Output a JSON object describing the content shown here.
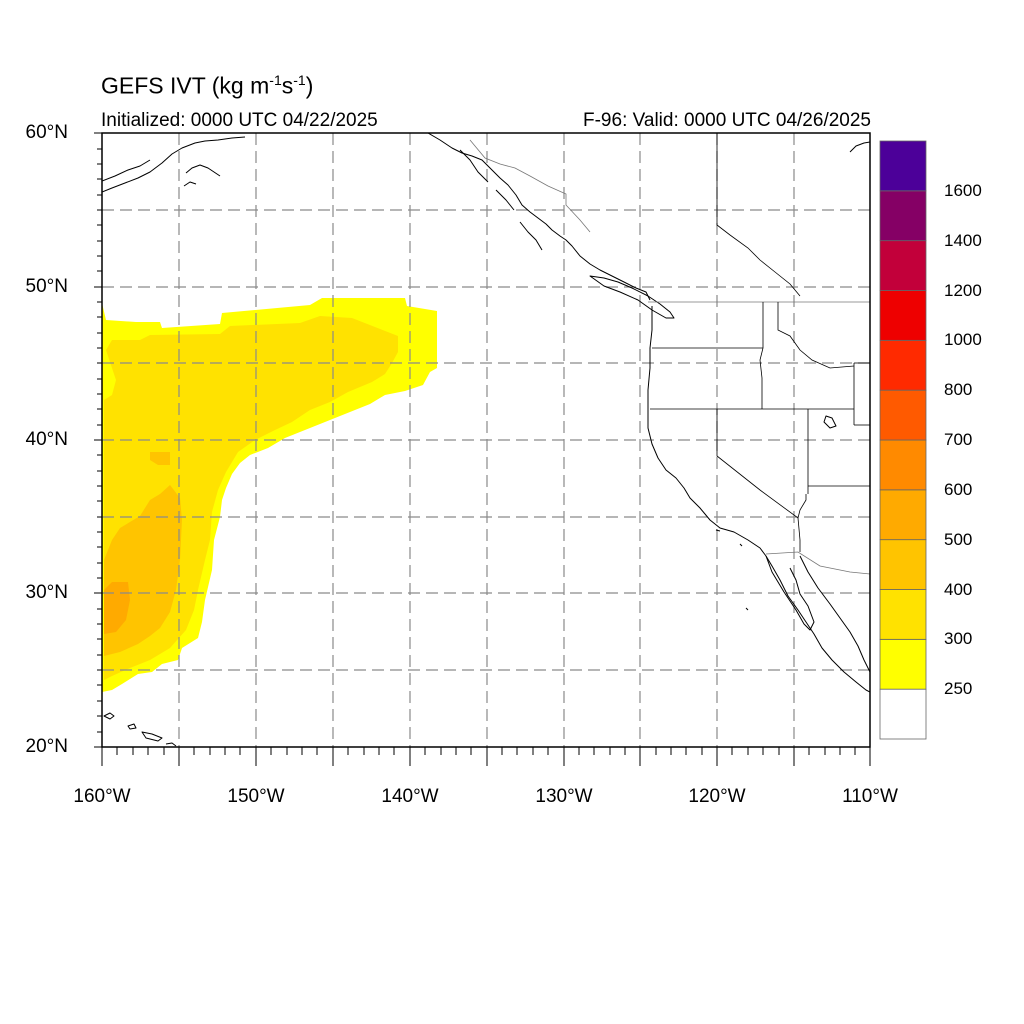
{
  "title": {
    "text": "GEFS IVT (kg m",
    "unit_sup1": "-1",
    "unit_mid": "s",
    "unit_sup2": "-1",
    "unit_close": ")"
  },
  "subtitle_left": "Initialized: 0000 UTC 04/22/2025",
  "subtitle_right": "F-96: Valid: 0000 UTC 04/26/2025",
  "map": {
    "lon_range": [
      -160,
      -110
    ],
    "lat_range": [
      20,
      60
    ],
    "gridlines": "dashed gray every 5 degrees",
    "lat_labels": [
      "20°N",
      "30°N",
      "40°N",
      "50°N",
      "60°N"
    ],
    "lon_labels": [
      "160°W",
      "150°W",
      "140°W",
      "130°W",
      "120°W",
      "110°W"
    ]
  },
  "colorbar": {
    "labels": [
      "250",
      "300",
      "400",
      "500",
      "600",
      "700",
      "800",
      "1000",
      "1200",
      "1400",
      "1600"
    ],
    "colors": [
      "#ffffff",
      "#ffff00",
      "#ffe200",
      "#ffc400",
      "#ffaa00",
      "#ff8a00",
      "#ff5a00",
      "#ff2a00",
      "#ee0000",
      "#c2003a",
      "#850065",
      "#4c0099"
    ]
  },
  "ivt_field": {
    "region": "North Pacific atmospheric river plume",
    "colors": {
      "c250": "#ffff00",
      "c300": "#ffe200",
      "c400": "#ffc400",
      "c500": "#ffaa00"
    }
  }
}
